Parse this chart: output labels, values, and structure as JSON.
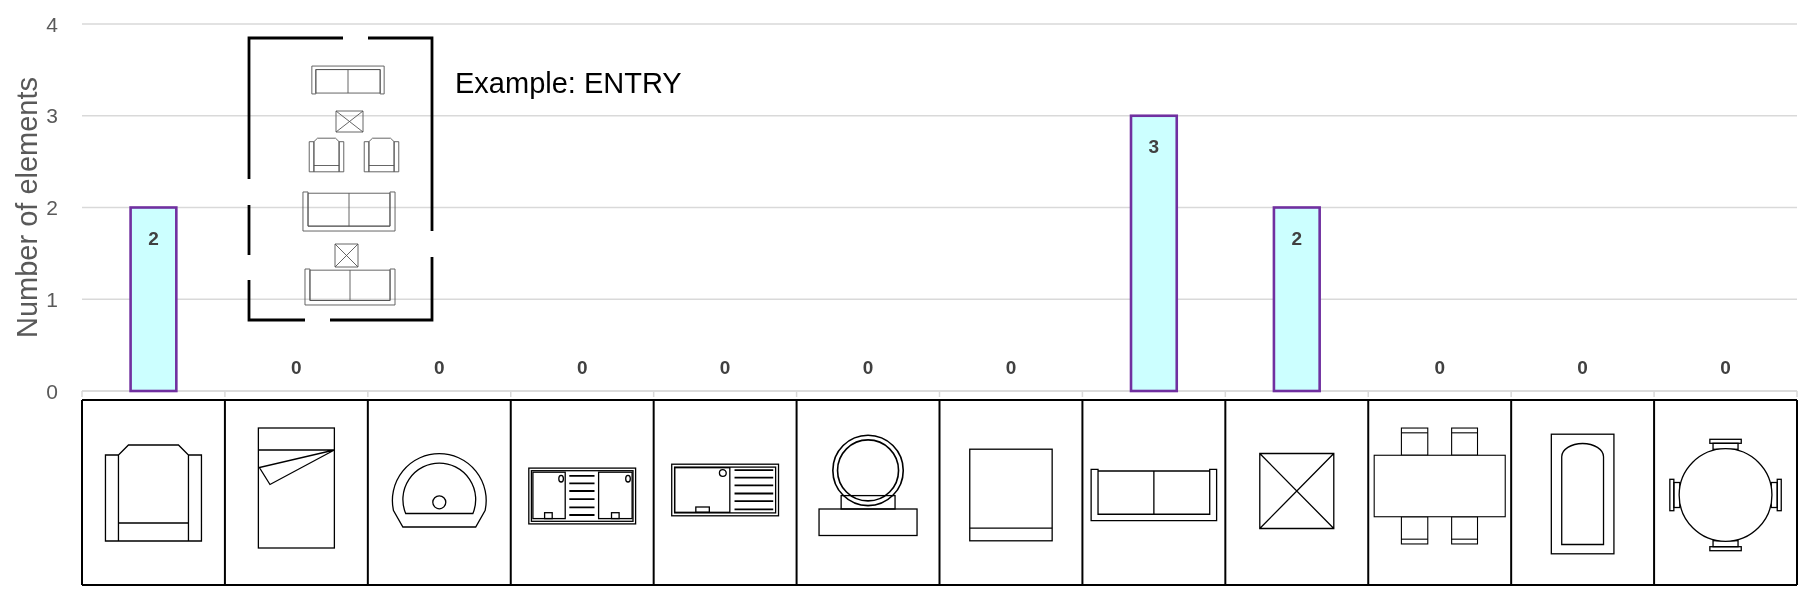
{
  "chart_data": {
    "type": "bar",
    "ylabel": "Number of elements",
    "categories": [
      null,
      null,
      null,
      null,
      null,
      null,
      null,
      null,
      null,
      null,
      null,
      null
    ],
    "values": [
      2,
      0,
      0,
      0,
      0,
      0,
      0,
      3,
      2,
      0,
      0,
      0
    ],
    "color": "#ccffff",
    "ylim": [
      0,
      4
    ],
    "yticks": [
      0,
      1,
      2,
      3,
      4
    ],
    "grid": "y",
    "data_labels": true,
    "annotations": [
      "Example: ENTRY"
    ]
  }
}
